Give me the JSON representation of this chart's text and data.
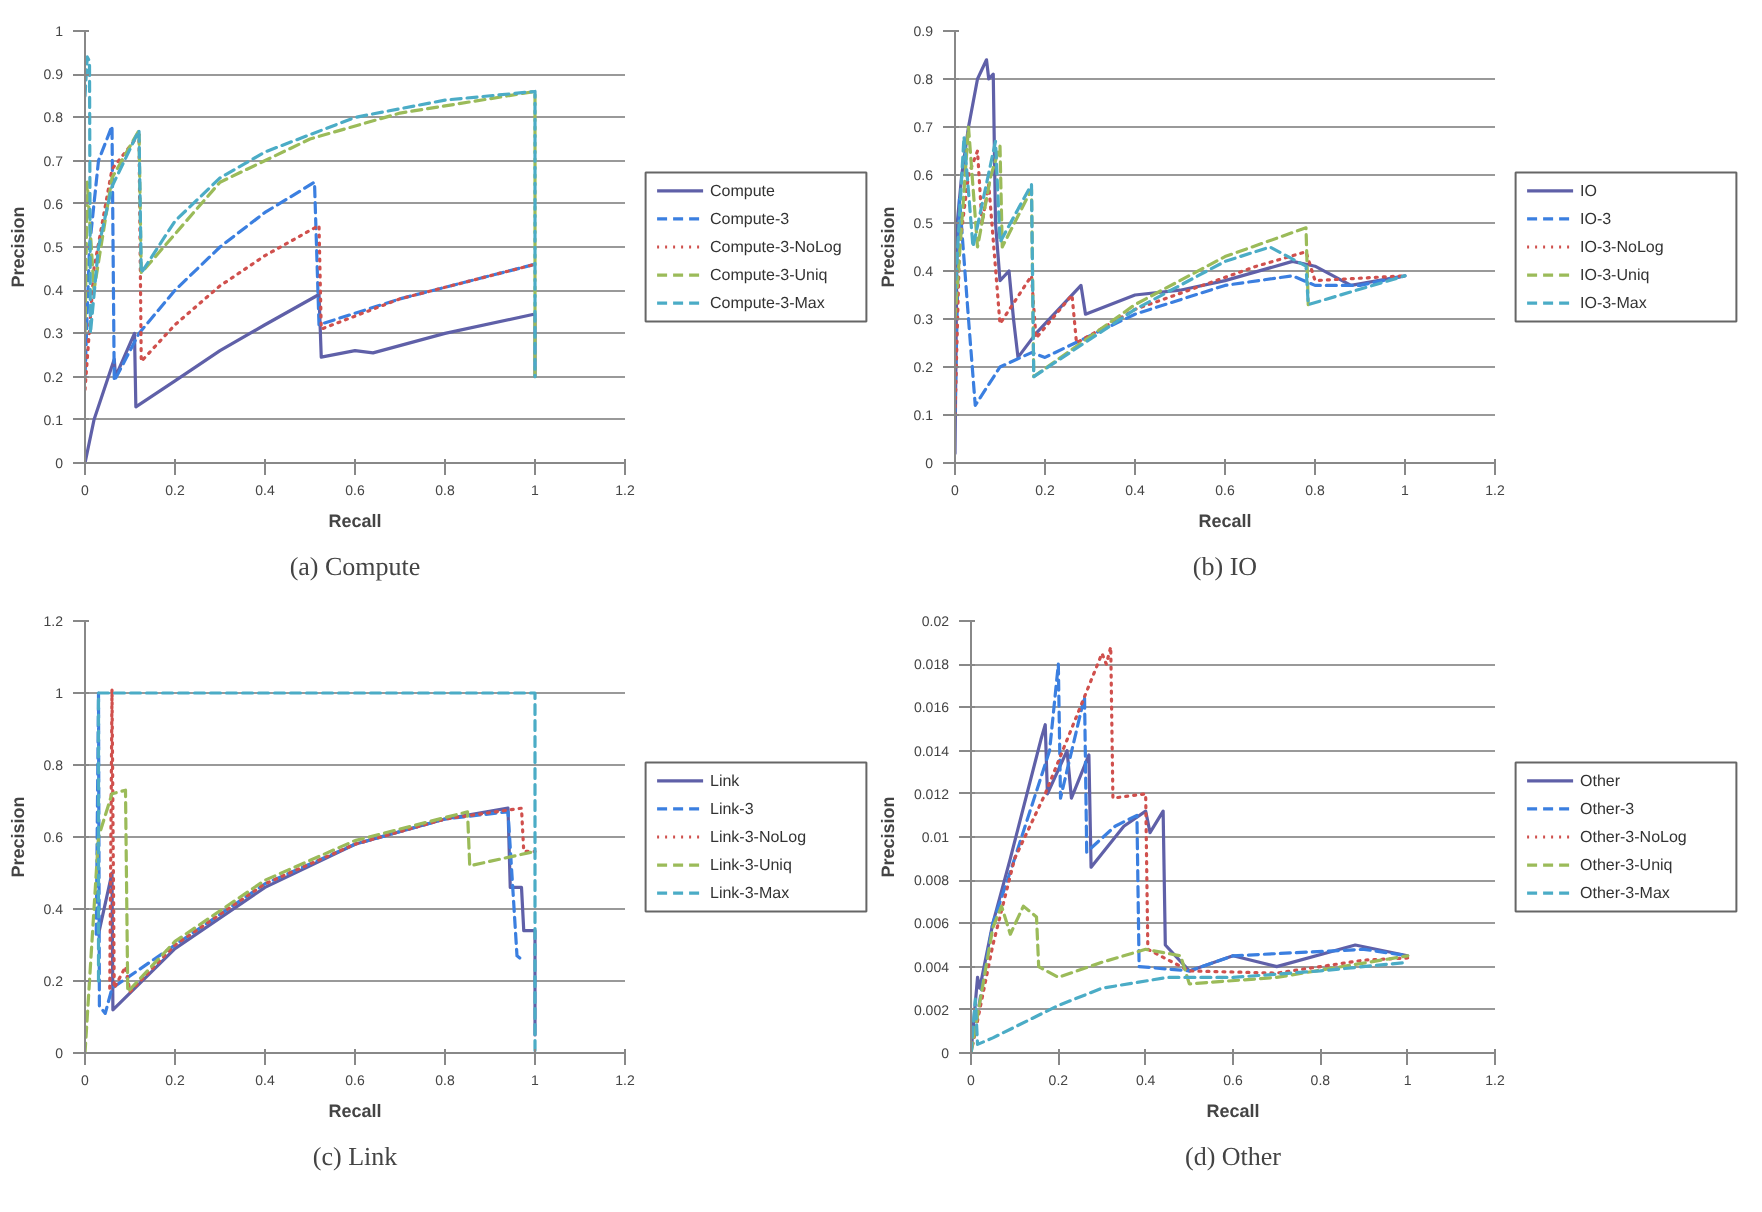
{
  "chart_data": [
    {
      "type": "line",
      "title": "(a) Compute",
      "xlabel": "Recall",
      "ylabel": "Precision",
      "xlim": [
        0,
        1.2
      ],
      "xticks": [
        0,
        0.2,
        0.4,
        0.6,
        0.8,
        1,
        1.2
      ],
      "ylim": [
        0,
        1
      ],
      "yticks": [
        0,
        0.1,
        0.2,
        0.3,
        0.4,
        0.5,
        0.6,
        0.7,
        0.8,
        0.9,
        1
      ],
      "grid": "y",
      "legend": "right",
      "marker": "none",
      "series": [
        {
          "name": "Compute",
          "color": "#5f60a8",
          "line_style": "solid",
          "x": [
            0,
            0.02,
            0.065,
            0.068,
            0.11,
            0.113,
            0.2,
            0.3,
            0.4,
            0.52,
            0.525,
            0.6,
            0.64,
            0.8,
            1.0,
            1.0
          ],
          "values": [
            0,
            0.1,
            0.24,
            0.2,
            0.3,
            0.13,
            0.19,
            0.26,
            0.32,
            0.39,
            0.245,
            0.26,
            0.255,
            0.3,
            0.345,
            0.2
          ]
        },
        {
          "name": "Compute-3",
          "color": "#3b7fe0",
          "line_style": "dashed",
          "x": [
            0,
            0.01,
            0.03,
            0.06,
            0.065,
            0.12,
            0.2,
            0.3,
            0.4,
            0.51,
            0.52,
            0.7,
            1.0
          ],
          "values": [
            0.2,
            0.5,
            0.7,
            0.78,
            0.19,
            0.3,
            0.4,
            0.5,
            0.58,
            0.65,
            0.32,
            0.38,
            0.46
          ]
        },
        {
          "name": "Compute-3-NoLog",
          "color": "#d0504d",
          "line_style": "dotted",
          "x": [
            0,
            0.02,
            0.06,
            0.12,
            0.125,
            0.2,
            0.3,
            0.4,
            0.52,
            0.525,
            0.7,
            1.0
          ],
          "values": [
            0.17,
            0.45,
            0.68,
            0.76,
            0.235,
            0.32,
            0.41,
            0.48,
            0.55,
            0.31,
            0.38,
            0.46
          ]
        },
        {
          "name": "Compute-3-Uniq",
          "color": "#9bbb59",
          "line_style": "dashed",
          "x": [
            0,
            0.005,
            0.02,
            0.06,
            0.12,
            0.125,
            0.3,
            0.5,
            0.7,
            1.0,
            1.0
          ],
          "values": [
            0.3,
            0.65,
            0.4,
            0.66,
            0.77,
            0.44,
            0.65,
            0.75,
            0.81,
            0.86,
            0.2
          ]
        },
        {
          "name": "Compute-3-Max",
          "color": "#4bacc6",
          "line_style": "dashed",
          "x": [
            0,
            0.005,
            0.01,
            0.012,
            0.03,
            0.06,
            0.12,
            0.125,
            0.2,
            0.3,
            0.4,
            0.5,
            0.6,
            0.8,
            1.0,
            1.0
          ],
          "values": [
            0.85,
            0.94,
            0.93,
            0.3,
            0.5,
            0.64,
            0.77,
            0.44,
            0.56,
            0.66,
            0.72,
            0.76,
            0.8,
            0.84,
            0.86,
            0.2
          ]
        }
      ]
    },
    {
      "type": "line",
      "title": "(b) IO",
      "xlabel": "Recall",
      "ylabel": "Precision",
      "xlim": [
        0,
        1.2
      ],
      "xticks": [
        0,
        0.2,
        0.4,
        0.6,
        0.8,
        1,
        1.2
      ],
      "ylim": [
        0,
        0.9
      ],
      "yticks": [
        0,
        0.1,
        0.2,
        0.3,
        0.4,
        0.5,
        0.6,
        0.7,
        0.8,
        0.9
      ],
      "grid": "y",
      "legend": "right",
      "marker": "none",
      "series": [
        {
          "name": "IO",
          "color": "#5f60a8",
          "line_style": "solid",
          "x": [
            0,
            0.005,
            0.015,
            0.03,
            0.05,
            0.07,
            0.075,
            0.085,
            0.09,
            0.1,
            0.12,
            0.13,
            0.14,
            0.18,
            0.28,
            0.29,
            0.4,
            0.5,
            0.6,
            0.75,
            0.8,
            0.88,
            1.0
          ],
          "values": [
            0.02,
            0.5,
            0.6,
            0.7,
            0.8,
            0.84,
            0.8,
            0.81,
            0.5,
            0.38,
            0.4,
            0.3,
            0.22,
            0.27,
            0.37,
            0.31,
            0.35,
            0.36,
            0.38,
            0.42,
            0.41,
            0.37,
            0.39
          ]
        },
        {
          "name": "IO-3",
          "color": "#3b7fe0",
          "line_style": "dashed",
          "x": [
            0,
            0.01,
            0.03,
            0.045,
            0.1,
            0.17,
            0.2,
            0.4,
            0.6,
            0.75,
            0.8,
            0.9,
            1.0
          ],
          "values": [
            0.1,
            0.55,
            0.3,
            0.12,
            0.2,
            0.23,
            0.22,
            0.31,
            0.37,
            0.39,
            0.37,
            0.37,
            0.39
          ]
        },
        {
          "name": "IO-3-NoLog",
          "color": "#d0504d",
          "line_style": "dotted",
          "x": [
            0,
            0.01,
            0.03,
            0.05,
            0.06,
            0.075,
            0.1,
            0.17,
            0.18,
            0.26,
            0.27,
            0.4,
            0.67,
            0.78,
            0.8,
            1.0
          ],
          "values": [
            0.1,
            0.45,
            0.6,
            0.65,
            0.5,
            0.58,
            0.29,
            0.39,
            0.26,
            0.35,
            0.25,
            0.32,
            0.41,
            0.44,
            0.38,
            0.39
          ]
        },
        {
          "name": "IO-3-Uniq",
          "color": "#9bbb59",
          "line_style": "dashed",
          "x": [
            0,
            0.03,
            0.05,
            0.08,
            0.1,
            0.105,
            0.17,
            0.175,
            0.4,
            0.6,
            0.78,
            0.785
          ],
          "values": [
            0.3,
            0.7,
            0.45,
            0.6,
            0.66,
            0.45,
            0.57,
            0.18,
            0.33,
            0.43,
            0.49,
            0.33
          ]
        },
        {
          "name": "IO-3-Max",
          "color": "#4bacc6",
          "line_style": "dashed",
          "x": [
            0,
            0.02,
            0.04,
            0.09,
            0.1,
            0.17,
            0.175,
            0.4,
            0.6,
            0.7,
            0.78,
            0.785,
            1.0
          ],
          "values": [
            0.35,
            0.68,
            0.45,
            0.67,
            0.46,
            0.58,
            0.18,
            0.32,
            0.42,
            0.45,
            0.41,
            0.33,
            0.39
          ]
        }
      ]
    },
    {
      "type": "line",
      "title": "(c) Link",
      "xlabel": "Recall",
      "ylabel": "Precision",
      "xlim": [
        0,
        1.2
      ],
      "xticks": [
        0,
        0.2,
        0.4,
        0.6,
        0.8,
        1,
        1.2
      ],
      "ylim": [
        0,
        1.2
      ],
      "yticks": [
        0,
        0.2,
        0.4,
        0.6,
        0.8,
        1,
        1.2
      ],
      "grid": "y",
      "legend": "right",
      "marker": "none",
      "series": [
        {
          "name": "Link",
          "color": "#5f60a8",
          "line_style": "solid",
          "x": [
            0.03,
            0.06,
            0.062,
            0.2,
            0.4,
            0.6,
            0.8,
            0.94,
            0.945,
            0.97,
            0.975,
            1.0,
            1.0
          ],
          "values": [
            0.33,
            0.5,
            0.12,
            0.29,
            0.46,
            0.58,
            0.65,
            0.68,
            0.46,
            0.46,
            0.34,
            0.34,
            0.05
          ]
        },
        {
          "name": "Link-3",
          "color": "#3b7fe0",
          "line_style": "dashed",
          "x": [
            0.025,
            0.03,
            0.032,
            0.045,
            0.06,
            0.2,
            0.4,
            0.6,
            0.8,
            0.94,
            0.96,
            0.97
          ],
          "values": [
            0.33,
            1.0,
            0.13,
            0.11,
            0.18,
            0.3,
            0.47,
            0.58,
            0.65,
            0.67,
            0.27,
            0.26
          ]
        },
        {
          "name": "Link-3-NoLog",
          "color": "#d0504d",
          "line_style": "dotted",
          "x": [
            0.055,
            0.06,
            0.065,
            0.09,
            0.1,
            0.2,
            0.4,
            0.6,
            0.8,
            0.97,
            0.975,
            1.0
          ],
          "values": [
            0.18,
            1.01,
            0.18,
            0.24,
            0.17,
            0.3,
            0.47,
            0.58,
            0.65,
            0.68,
            0.56,
            0.56
          ]
        },
        {
          "name": "Link-3-Uniq",
          "color": "#9bbb59",
          "line_style": "dashed",
          "x": [
            0,
            0.03,
            0.06,
            0.09,
            0.095,
            0.2,
            0.4,
            0.6,
            0.85,
            0.855,
            1.0
          ],
          "values": [
            0,
            0.6,
            0.72,
            0.73,
            0.17,
            0.31,
            0.48,
            0.59,
            0.67,
            0.52,
            0.56
          ]
        },
        {
          "name": "Link-3-Max",
          "color": "#4bacc6",
          "line_style": "dashed",
          "x": [
            0.03,
            0.03,
            1.0,
            1.0
          ],
          "values": [
            0.2,
            1.0,
            1.0,
            0.0
          ]
        }
      ]
    },
    {
      "type": "line",
      "title": "(d) Other",
      "xlabel": "Recall",
      "ylabel": "Precision",
      "xlim": [
        0,
        1.2
      ],
      "xticks": [
        0,
        0.2,
        0.4,
        0.6,
        0.8,
        1,
        1.2
      ],
      "ylim": [
        0,
        0.02
      ],
      "yticks": [
        0,
        0.002,
        0.004,
        0.006,
        0.008,
        0.01,
        0.012,
        0.014,
        0.016,
        0.018,
        0.02
      ],
      "grid": "y",
      "legend": "right",
      "marker": "none",
      "series": [
        {
          "name": "Other",
          "color": "#5f60a8",
          "line_style": "solid",
          "x": [
            0,
            0.015,
            0.02,
            0.05,
            0.09,
            0.16,
            0.17,
            0.175,
            0.22,
            0.23,
            0.27,
            0.275,
            0.35,
            0.4,
            0.41,
            0.44,
            0.445,
            0.5,
            0.6,
            0.7,
            0.88,
            1.0
          ],
          "values": [
            0,
            0.0035,
            0.003,
            0.006,
            0.009,
            0.0145,
            0.0152,
            0.012,
            0.014,
            0.0118,
            0.0138,
            0.0086,
            0.0105,
            0.0112,
            0.0102,
            0.0112,
            0.005,
            0.0038,
            0.0045,
            0.004,
            0.005,
            0.0045
          ]
        },
        {
          "name": "Other-3",
          "color": "#3b7fe0",
          "line_style": "dashed",
          "x": [
            0,
            0.05,
            0.1,
            0.18,
            0.2,
            0.205,
            0.26,
            0.265,
            0.33,
            0.38,
            0.385,
            0.5,
            0.6,
            0.9,
            1.0
          ],
          "values": [
            0,
            0.006,
            0.009,
            0.014,
            0.018,
            0.0118,
            0.0165,
            0.0093,
            0.0105,
            0.011,
            0.004,
            0.0038,
            0.0045,
            0.0048,
            0.0045
          ]
        },
        {
          "name": "Other-3-NoLog",
          "color": "#d0504d",
          "line_style": "dotted",
          "x": [
            0,
            0.05,
            0.1,
            0.17,
            0.22,
            0.3,
            0.31,
            0.32,
            0.325,
            0.4,
            0.405,
            0.5,
            0.7,
            0.9,
            1.0
          ],
          "values": [
            0,
            0.005,
            0.009,
            0.012,
            0.0145,
            0.0185,
            0.018,
            0.0188,
            0.0118,
            0.012,
            0.0048,
            0.0038,
            0.0037,
            0.0043,
            0.0044
          ]
        },
        {
          "name": "Other-3-Uniq",
          "color": "#9bbb59",
          "line_style": "dashed",
          "x": [
            0,
            0.05,
            0.07,
            0.09,
            0.12,
            0.15,
            0.155,
            0.2,
            0.3,
            0.4,
            0.48,
            0.5,
            0.7,
            1.0
          ],
          "values": [
            0,
            0.0058,
            0.0068,
            0.0055,
            0.0068,
            0.0063,
            0.004,
            0.0035,
            0.0042,
            0.0048,
            0.0045,
            0.0032,
            0.0035,
            0.0045
          ]
        },
        {
          "name": "Other-3-Max",
          "color": "#4bacc6",
          "line_style": "dashed",
          "x": [
            0,
            0.01,
            0.015,
            0.05,
            0.2,
            0.3,
            0.45,
            0.6,
            0.8,
            1.0
          ],
          "values": [
            0,
            0.0025,
            0.0004,
            0.0007,
            0.0022,
            0.003,
            0.0035,
            0.0035,
            0.0038,
            0.0042
          ]
        }
      ]
    }
  ]
}
